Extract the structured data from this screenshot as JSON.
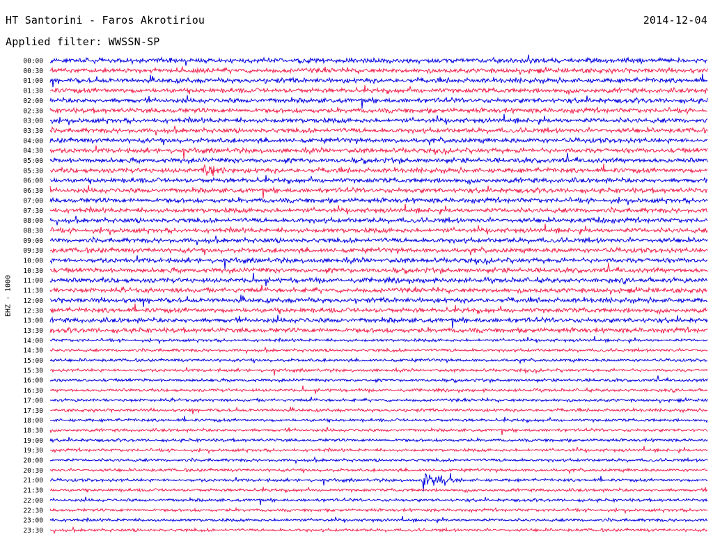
{
  "header": {
    "title": "HT Santorini - Faros Akrotiriou",
    "date": "2014-12-04",
    "filter": "Applied filter: WWSSN-SP"
  },
  "channel_label": "EHZ - 1000",
  "colors": {
    "odd": "#0000e0",
    "even": "#f0204c"
  },
  "chart_data": {
    "type": "line",
    "title": "HT Santorini - Faros Akrotiriou",
    "subtitle": "2014-12-04",
    "ylabel": "EHZ - 1000",
    "xlabel": "",
    "row_labels": [
      "00:00",
      "00:30",
      "01:00",
      "01:30",
      "02:00",
      "02:30",
      "03:00",
      "03:30",
      "04:00",
      "04:30",
      "05:00",
      "05:30",
      "06:00",
      "06:30",
      "07:00",
      "07:30",
      "08:00",
      "08:30",
      "09:00",
      "09:30",
      "10:00",
      "10:30",
      "11:00",
      "11:30",
      "12:00",
      "12:30",
      "13:00",
      "13:30",
      "14:00",
      "14:30",
      "15:00",
      "15:30",
      "16:00",
      "16:30",
      "17:00",
      "17:30",
      "18:00",
      "18:30",
      "19:00",
      "19:30",
      "20:00",
      "20:30",
      "21:00",
      "21:30",
      "22:00",
      "22:30",
      "23:00",
      "23:30"
    ],
    "row_minutes": 30,
    "events": [
      {
        "row": "05:30",
        "minute": 7,
        "amplitude": 9,
        "duration_min": 1.5
      },
      {
        "row": "08:00",
        "minute": 25,
        "amplitude": 8,
        "duration_min": 0.3
      },
      {
        "row": "21:00",
        "minute": 17,
        "amplitude": 18,
        "duration_min": 1.8
      }
    ],
    "grid": false,
    "legend": "none"
  }
}
